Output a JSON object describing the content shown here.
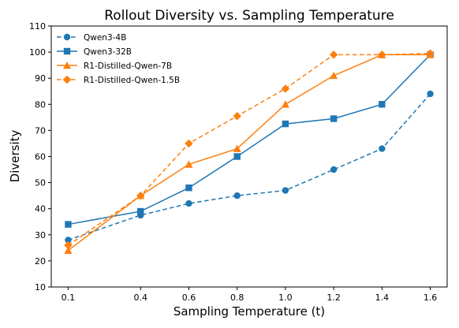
{
  "chart_data": {
    "type": "line",
    "title": "Rollout Diversity vs. Sampling Temperature",
    "xlabel": "Sampling Temperature (t)",
    "ylabel": "Diversity",
    "x": [
      0.1,
      0.4,
      0.6,
      0.8,
      1.0,
      1.2,
      1.4,
      1.6
    ],
    "x_tick_labels": [
      "0.1",
      "0.4",
      "0.6",
      "0.8",
      "1.0",
      "1.2",
      "1.4",
      "1.6"
    ],
    "xlim": [
      0.03,
      1.67
    ],
    "ylim": [
      10,
      110
    ],
    "y_ticks": [
      10,
      20,
      30,
      40,
      50,
      60,
      70,
      80,
      90,
      100,
      110
    ],
    "y_tick_labels": [
      "10",
      "20",
      "30",
      "40",
      "50",
      "60",
      "70",
      "80",
      "90",
      "100",
      "110"
    ],
    "grid": false,
    "legend_position": "top-left",
    "series": [
      {
        "name": "Qwen3-4B",
        "color": "#1f77b4",
        "linestyle": "dashed",
        "marker": "circle",
        "values": [
          28,
          37.5,
          42,
          45,
          47,
          55,
          63,
          84
        ]
      },
      {
        "name": "Qwen3-32B",
        "color": "#1f77b4",
        "linestyle": "solid",
        "marker": "square",
        "values": [
          34,
          39,
          48,
          60,
          72.5,
          74.5,
          80,
          99
        ]
      },
      {
        "name": "R1-Distilled-Qwen-7B",
        "color": "#ff7f0e",
        "linestyle": "solid",
        "marker": "triangle",
        "values": [
          24,
          45,
          57,
          63,
          80,
          91,
          99,
          99
        ]
      },
      {
        "name": "R1-Distilled-Qwen-1.5B",
        "color": "#ff7f0e",
        "linestyle": "dashed",
        "marker": "diamond",
        "values": [
          26,
          45,
          65,
          75.5,
          86,
          99,
          99,
          99.5
        ]
      }
    ]
  }
}
